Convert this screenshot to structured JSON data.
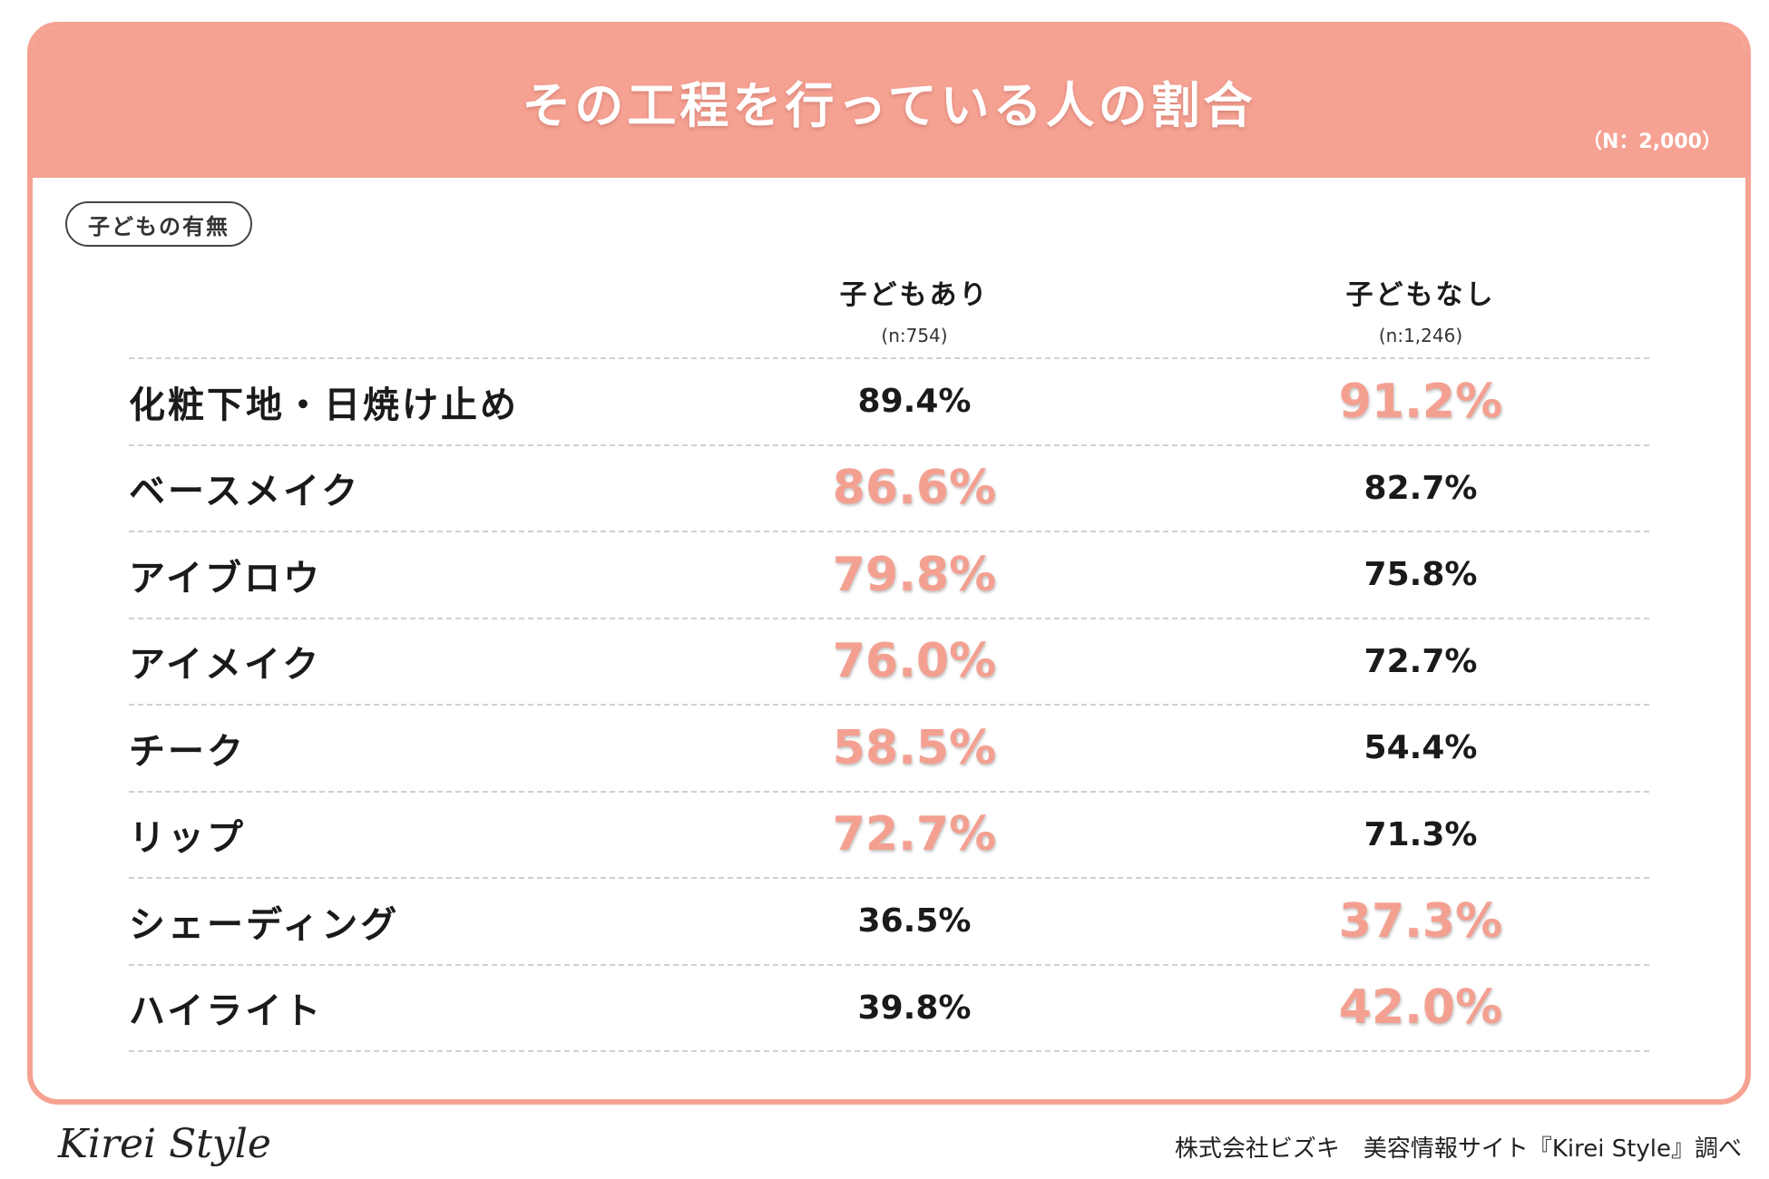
{
  "header": {
    "title": "その工程を行っている人の割合",
    "sample": "（N：2,000）"
  },
  "group_label": "子どもの有無",
  "columns": [
    {
      "label": "子どもあり",
      "n": "(n:754)"
    },
    {
      "label": "子どもなし",
      "n": "(n:1,246)"
    }
  ],
  "colors": {
    "accent": "#f6a293",
    "highlight_text": "#f4a091"
  },
  "chart_data": {
    "type": "table",
    "title": "その工程を行っている人の割合",
    "columns": [
      "子どもあり",
      "子どもなし"
    ],
    "rows": [
      {
        "label": "化粧下地・日焼け止め",
        "values": [
          "89.4%",
          "91.2%"
        ],
        "highlight": 1
      },
      {
        "label": "ベースメイク",
        "values": [
          "86.6%",
          "82.7%"
        ],
        "highlight": 0
      },
      {
        "label": "アイブロウ",
        "values": [
          "79.8%",
          "75.8%"
        ],
        "highlight": 0
      },
      {
        "label": "アイメイク",
        "values": [
          "76.0%",
          "72.7%"
        ],
        "highlight": 0
      },
      {
        "label": "チーク",
        "values": [
          "58.5%",
          "54.4%"
        ],
        "highlight": 0
      },
      {
        "label": "リップ",
        "values": [
          "72.7%",
          "71.3%"
        ],
        "highlight": 0
      },
      {
        "label": "シェーディング",
        "values": [
          "36.5%",
          "37.3%"
        ],
        "highlight": 1
      },
      {
        "label": "ハイライト",
        "values": [
          "39.8%",
          "42.0%"
        ],
        "highlight": 1
      }
    ]
  },
  "footer": {
    "logo": "Kirei Style",
    "credit": "株式会社ビズキ　美容情報サイト『Kirei Style』調べ"
  }
}
